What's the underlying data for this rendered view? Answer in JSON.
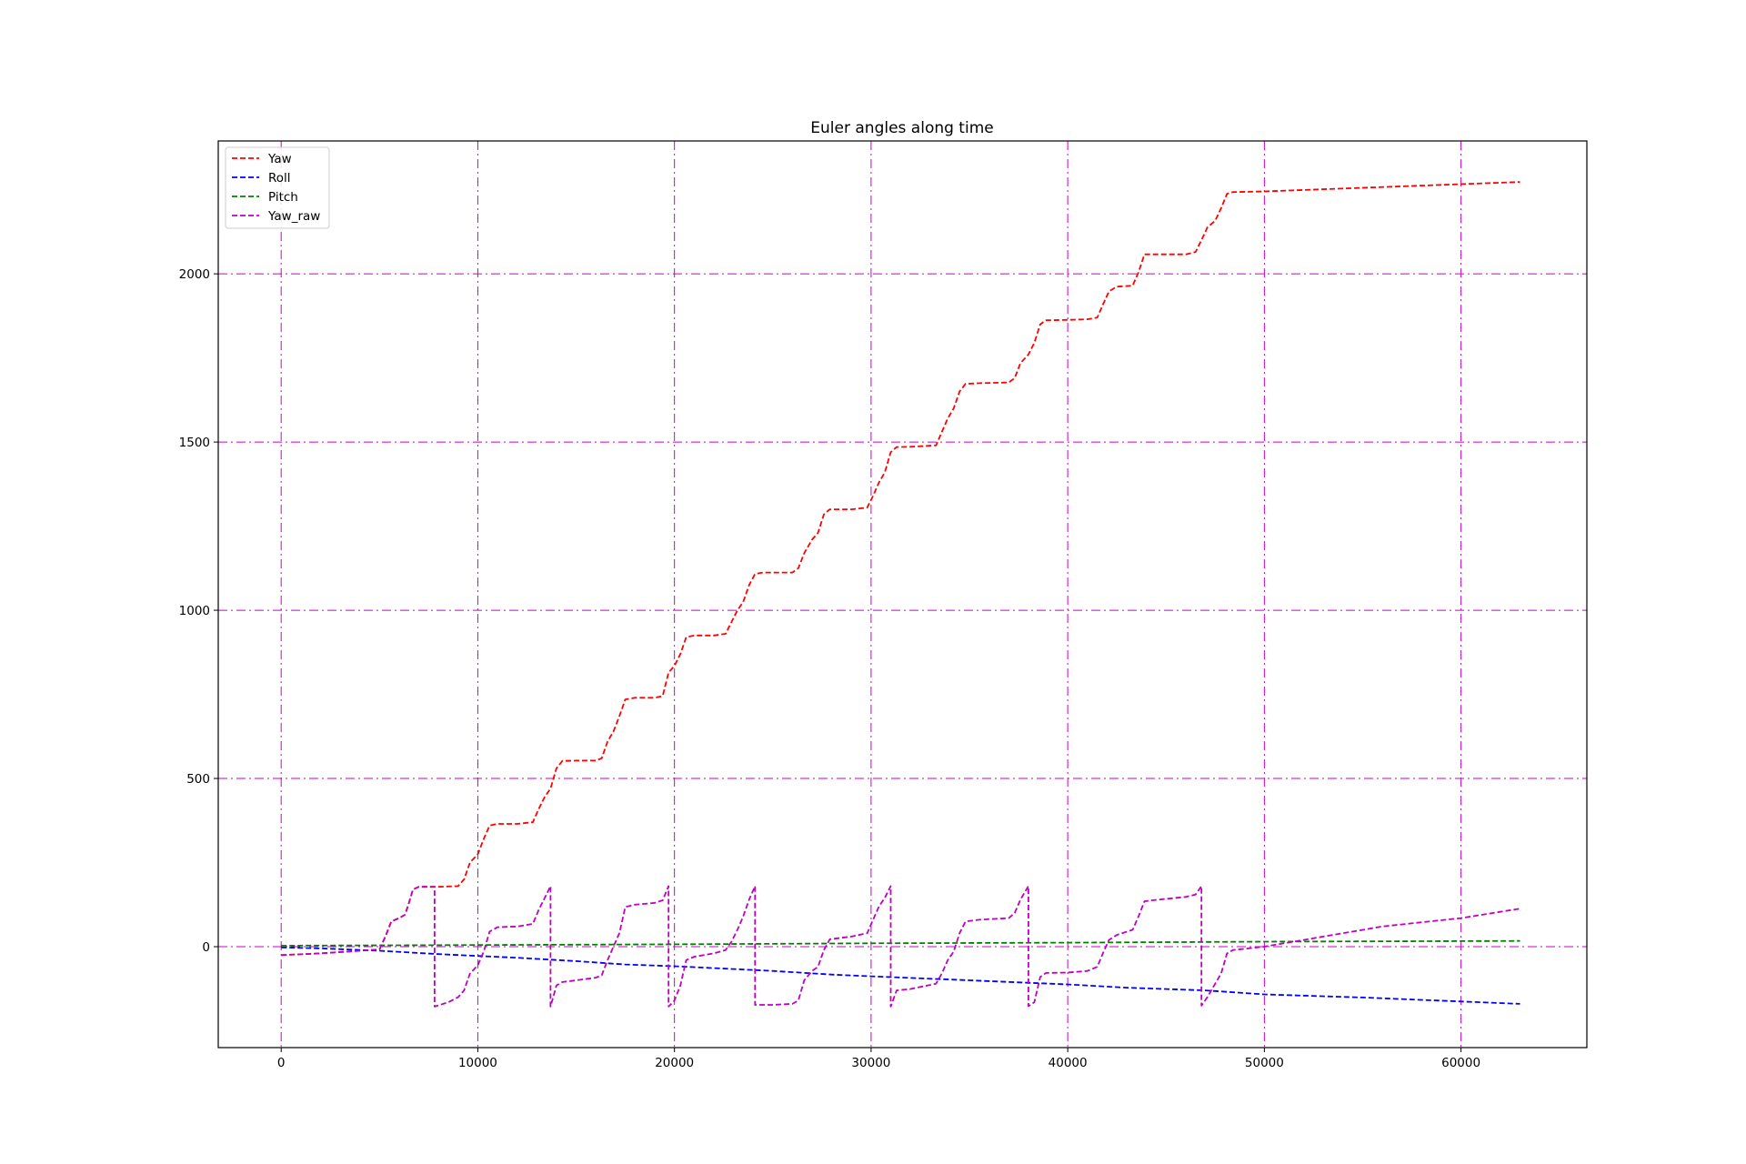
{
  "chart_data": {
    "type": "line",
    "title": "Euler angles along time",
    "xlabel": "",
    "ylabel": "",
    "xlim": [
      -3200,
      66400
    ],
    "ylim": [
      -300,
      2395
    ],
    "x_ticks": [
      0,
      10000,
      20000,
      30000,
      40000,
      50000,
      60000
    ],
    "y_ticks": [
      0,
      500,
      1000,
      1500,
      2000
    ],
    "grid": true,
    "grid_color": "#cc00cc",
    "legend_position": "upper-left",
    "series": [
      {
        "name": "Yaw",
        "color": "#ff0000",
        "style": "dashed",
        "points": [
          [
            0,
            -25
          ],
          [
            2000,
            -20
          ],
          [
            4000,
            -12
          ],
          [
            5000,
            -8
          ],
          [
            5300,
            30
          ],
          [
            5600,
            75
          ],
          [
            6000,
            85
          ],
          [
            6300,
            95
          ],
          [
            6500,
            130
          ],
          [
            6700,
            170
          ],
          [
            7000,
            178
          ],
          [
            8000,
            178
          ],
          [
            9000,
            180
          ],
          [
            9300,
            200
          ],
          [
            9600,
            250
          ],
          [
            10000,
            275
          ],
          [
            10300,
            320
          ],
          [
            10600,
            360
          ],
          [
            11000,
            365
          ],
          [
            12000,
            365
          ],
          [
            12800,
            370
          ],
          [
            13100,
            410
          ],
          [
            13400,
            445
          ],
          [
            13700,
            470
          ],
          [
            14000,
            530
          ],
          [
            14300,
            552
          ],
          [
            15000,
            553
          ],
          [
            16000,
            553
          ],
          [
            16300,
            560
          ],
          [
            16600,
            610
          ],
          [
            16900,
            640
          ],
          [
            17200,
            685
          ],
          [
            17500,
            735
          ],
          [
            18000,
            740
          ],
          [
            19000,
            740
          ],
          [
            19400,
            745
          ],
          [
            19700,
            815
          ],
          [
            20000,
            835
          ],
          [
            20300,
            870
          ],
          [
            20600,
            920
          ],
          [
            21000,
            925
          ],
          [
            22000,
            925
          ],
          [
            22600,
            930
          ],
          [
            22900,
            965
          ],
          [
            23200,
            1000
          ],
          [
            23500,
            1025
          ],
          [
            23800,
            1075
          ],
          [
            24100,
            1108
          ],
          [
            24500,
            1112
          ],
          [
            26000,
            1112
          ],
          [
            26300,
            1125
          ],
          [
            26600,
            1170
          ],
          [
            27000,
            1210
          ],
          [
            27300,
            1230
          ],
          [
            27600,
            1285
          ],
          [
            27900,
            1300
          ],
          [
            29000,
            1300
          ],
          [
            29800,
            1305
          ],
          [
            30100,
            1340
          ],
          [
            30400,
            1380
          ],
          [
            30700,
            1410
          ],
          [
            31000,
            1470
          ],
          [
            31300,
            1485
          ],
          [
            32000,
            1486
          ],
          [
            33300,
            1490
          ],
          [
            33600,
            1530
          ],
          [
            33900,
            1570
          ],
          [
            34200,
            1600
          ],
          [
            34500,
            1650
          ],
          [
            34800,
            1673
          ],
          [
            35500,
            1675
          ],
          [
            37000,
            1677
          ],
          [
            37300,
            1690
          ],
          [
            37600,
            1735
          ],
          [
            38000,
            1760
          ],
          [
            38300,
            1795
          ],
          [
            38600,
            1850
          ],
          [
            38900,
            1862
          ],
          [
            40000,
            1863
          ],
          [
            41000,
            1865
          ],
          [
            41500,
            1870
          ],
          [
            41800,
            1910
          ],
          [
            42100,
            1948
          ],
          [
            42500,
            1962
          ],
          [
            43300,
            1965
          ],
          [
            43600,
            2005
          ],
          [
            43900,
            2058
          ],
          [
            44300,
            2058
          ],
          [
            46000,
            2058
          ],
          [
            46500,
            2065
          ],
          [
            46800,
            2100
          ],
          [
            47100,
            2138
          ],
          [
            47500,
            2158
          ],
          [
            47800,
            2195
          ],
          [
            48100,
            2238
          ],
          [
            48400,
            2243
          ],
          [
            50000,
            2245
          ],
          [
            63000,
            2273
          ]
        ]
      },
      {
        "name": "Roll",
        "color": "#0000ff",
        "style": "dashed",
        "points": [
          [
            0,
            -2
          ],
          [
            2000,
            -5
          ],
          [
            5000,
            -12
          ],
          [
            8000,
            -22
          ],
          [
            12000,
            -33
          ],
          [
            15000,
            -43
          ],
          [
            17500,
            -53
          ],
          [
            20000,
            -58
          ],
          [
            25000,
            -72
          ],
          [
            28000,
            -83
          ],
          [
            30000,
            -88
          ],
          [
            35000,
            -100
          ],
          [
            40000,
            -112
          ],
          [
            43000,
            -122
          ],
          [
            47000,
            -130
          ],
          [
            50000,
            -142
          ],
          [
            55000,
            -151
          ],
          [
            60000,
            -163
          ],
          [
            63000,
            -170
          ]
        ]
      },
      {
        "name": "Pitch",
        "color": "#008000",
        "style": "dashed",
        "points": [
          [
            0,
            3
          ],
          [
            10000,
            5
          ],
          [
            20000,
            7
          ],
          [
            30000,
            10
          ],
          [
            40000,
            12
          ],
          [
            50000,
            15
          ],
          [
            63000,
            17
          ]
        ]
      },
      {
        "name": "Yaw_raw",
        "color": "#bf00bf",
        "style": "dashed",
        "points": [
          [
            0,
            -25
          ],
          [
            2000,
            -20
          ],
          [
            4000,
            -12
          ],
          [
            5000,
            -8
          ],
          [
            5300,
            30
          ],
          [
            5600,
            75
          ],
          [
            6000,
            85
          ],
          [
            6300,
            95
          ],
          [
            6500,
            130
          ],
          [
            6700,
            170
          ],
          [
            7000,
            178
          ],
          [
            7800,
            178
          ],
          [
            7800,
            -178
          ],
          [
            8500,
            -165
          ],
          [
            9000,
            -150
          ],
          [
            9300,
            -130
          ],
          [
            9600,
            -80
          ],
          [
            10000,
            -55
          ],
          [
            10300,
            -15
          ],
          [
            10600,
            45
          ],
          [
            11000,
            58
          ],
          [
            12000,
            60
          ],
          [
            12800,
            68
          ],
          [
            13100,
            110
          ],
          [
            13400,
            145
          ],
          [
            13700,
            180
          ],
          [
            13700,
            -178
          ],
          [
            14000,
            -115
          ],
          [
            14300,
            -105
          ],
          [
            15000,
            -100
          ],
          [
            16000,
            -92
          ],
          [
            16300,
            -85
          ],
          [
            16600,
            -40
          ],
          [
            16900,
            0
          ],
          [
            17200,
            40
          ],
          [
            17500,
            118
          ],
          [
            18000,
            125
          ],
          [
            19000,
            130
          ],
          [
            19400,
            138
          ],
          [
            19700,
            180
          ],
          [
            19700,
            -178
          ],
          [
            20000,
            -160
          ],
          [
            20300,
            -115
          ],
          [
            20600,
            -40
          ],
          [
            21000,
            -30
          ],
          [
            22000,
            -20
          ],
          [
            22600,
            -10
          ],
          [
            22900,
            15
          ],
          [
            23200,
            50
          ],
          [
            23500,
            90
          ],
          [
            23800,
            140
          ],
          [
            24100,
            180
          ],
          [
            24100,
            -173
          ],
          [
            25000,
            -173
          ],
          [
            26000,
            -170
          ],
          [
            26300,
            -160
          ],
          [
            26600,
            -100
          ],
          [
            27000,
            -72
          ],
          [
            27300,
            -60
          ],
          [
            27600,
            -10
          ],
          [
            27900,
            22
          ],
          [
            29000,
            30
          ],
          [
            29800,
            40
          ],
          [
            30100,
            80
          ],
          [
            30400,
            120
          ],
          [
            30700,
            145
          ],
          [
            31000,
            180
          ],
          [
            31000,
            -178
          ],
          [
            31300,
            -130
          ],
          [
            32000,
            -126
          ],
          [
            33300,
            -110
          ],
          [
            33600,
            -80
          ],
          [
            33900,
            -40
          ],
          [
            34200,
            -15
          ],
          [
            34500,
            40
          ],
          [
            34800,
            75
          ],
          [
            35500,
            80
          ],
          [
            37000,
            85
          ],
          [
            37300,
            100
          ],
          [
            37600,
            140
          ],
          [
            38000,
            180
          ],
          [
            38000,
            -177
          ],
          [
            38300,
            -165
          ],
          [
            38600,
            -90
          ],
          [
            38900,
            -78
          ],
          [
            40000,
            -77
          ],
          [
            41000,
            -72
          ],
          [
            41500,
            -60
          ],
          [
            41800,
            -18
          ],
          [
            42100,
            20
          ],
          [
            42500,
            35
          ],
          [
            43300,
            50
          ],
          [
            43600,
            90
          ],
          [
            43900,
            135
          ],
          [
            44300,
            138
          ],
          [
            46000,
            148
          ],
          [
            46500,
            155
          ],
          [
            46800,
            180
          ],
          [
            46800,
            -175
          ],
          [
            47100,
            -150
          ],
          [
            47500,
            -110
          ],
          [
            47800,
            -80
          ],
          [
            48100,
            -20
          ],
          [
            48400,
            -10
          ],
          [
            50000,
            0
          ],
          [
            51000,
            10
          ],
          [
            56000,
            60
          ],
          [
            60000,
            85
          ],
          [
            63000,
            113
          ]
        ]
      }
    ]
  }
}
